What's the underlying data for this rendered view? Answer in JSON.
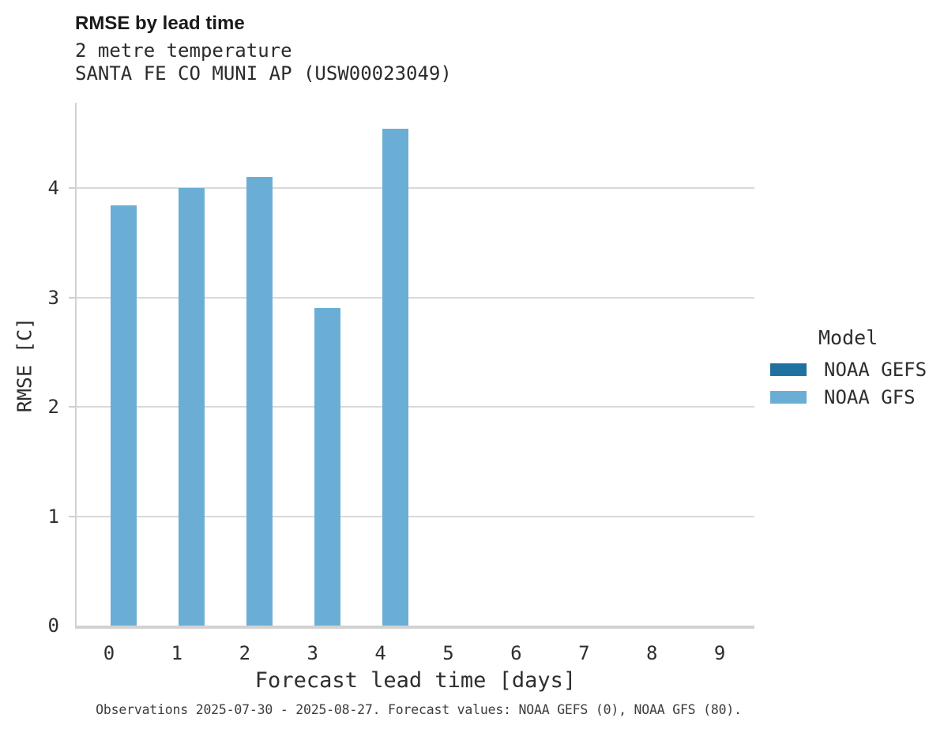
{
  "chart_data": {
    "type": "bar",
    "title": "RMSE by lead time",
    "subtitle": [
      "2 metre temperature",
      "SANTA FE CO MUNI AP (USW00023049)"
    ],
    "xlabel": "Forecast lead time [days]",
    "ylabel": "RMSE [C]",
    "categories": [
      "0",
      "1",
      "2",
      "3",
      "4",
      "5",
      "6",
      "7",
      "8",
      "9"
    ],
    "series": [
      {
        "name": "NOAA GEFS",
        "color": "#2070a0",
        "values": [
          null,
          null,
          null,
          null,
          null,
          null,
          null,
          null,
          null,
          null
        ]
      },
      {
        "name": "NOAA GFS",
        "color": "#6aaed6",
        "values": [
          3.84,
          4.0,
          4.1,
          2.9,
          4.54,
          null,
          null,
          null,
          null,
          null
        ]
      }
    ],
    "yticks": [
      0,
      1,
      2,
      3,
      4
    ],
    "ylim": [
      0,
      4.78
    ],
    "grid": "horizontal",
    "legend_title": "Model",
    "legend_position": "right",
    "footnote": "Observations 2025-07-30 - 2025-08-27. Forecast values: NOAA GEFS (0), NOAA GFS (80)."
  },
  "colors": {
    "gridline": "#d9d9d9",
    "axis": "#d2d2d2",
    "title_text": "#1a1a1a",
    "body_text": "#2e2e2e"
  }
}
